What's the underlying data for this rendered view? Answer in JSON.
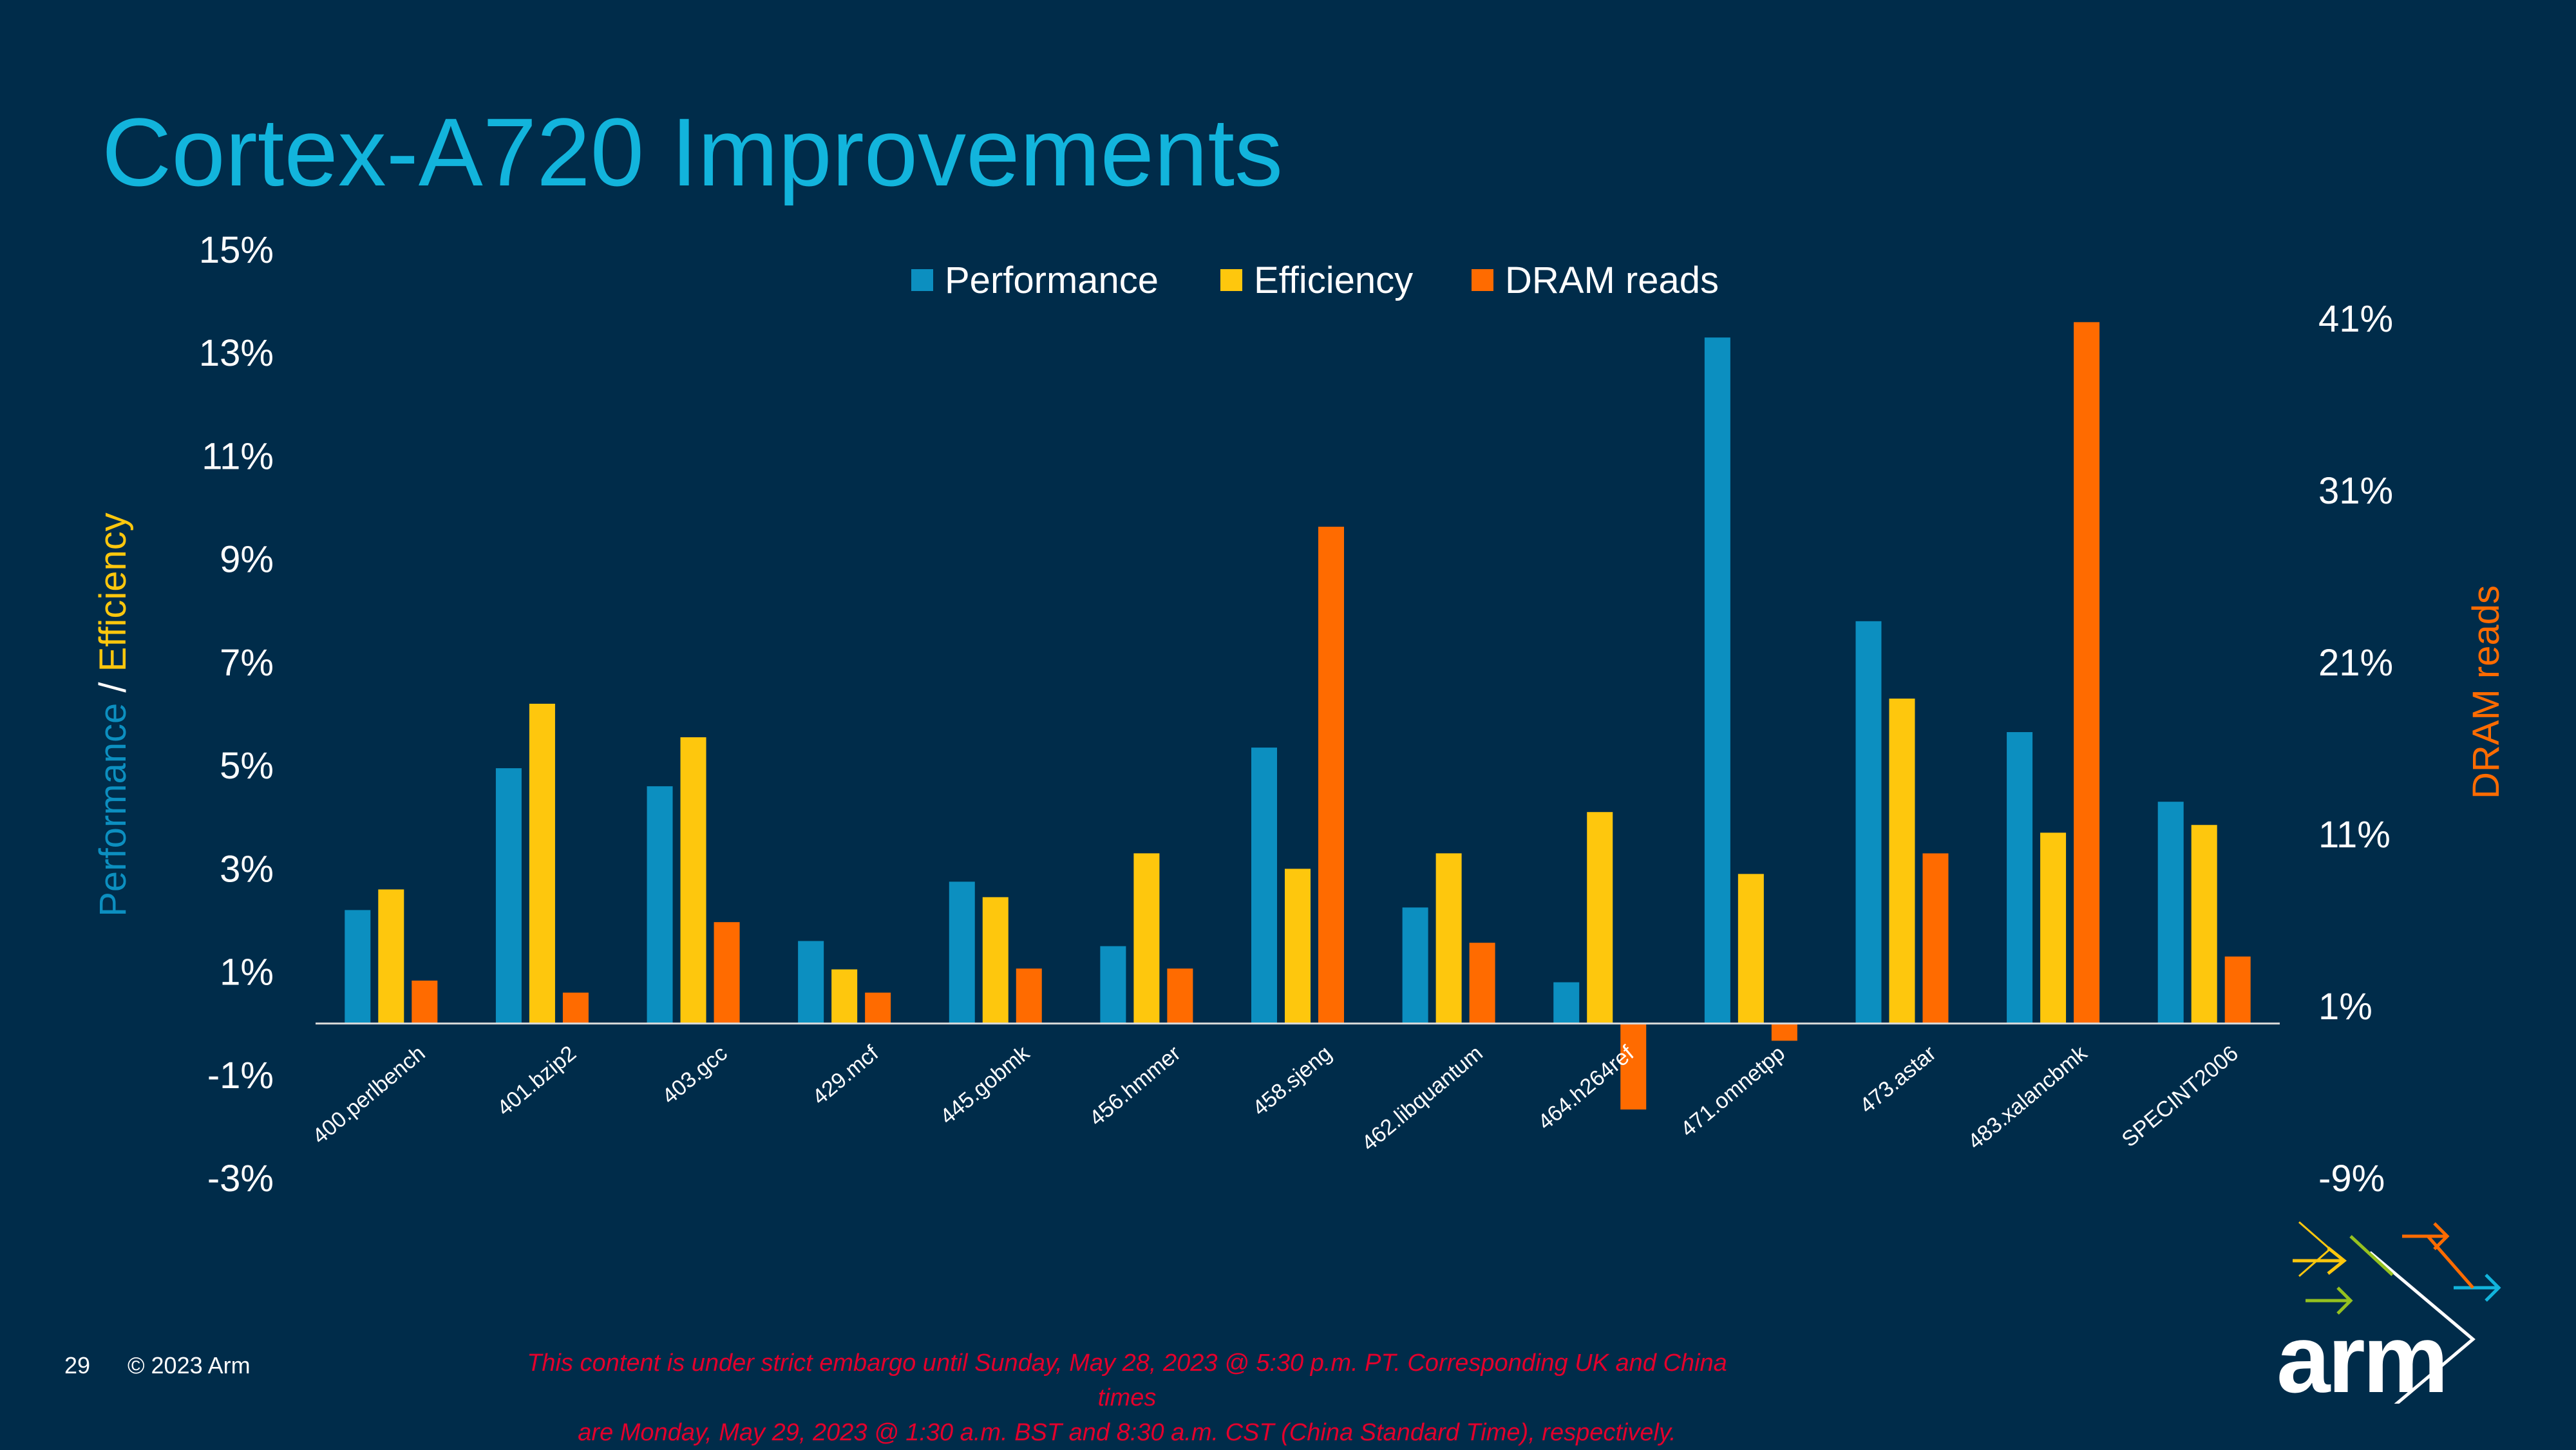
{
  "slide": {
    "title": "Cortex-A720 Improvements",
    "page_number": "29",
    "copyright": "© 2023 Arm",
    "embargo_line1": "This content is under strict embargo until Sunday, May 28, 2023 @ 5:30 p.m. PT. Corresponding UK and China times",
    "embargo_line2": "are Monday, May 29, 2023 @ 1:30 a.m. BST and 8:30 a.m. CST (China Standard Time), respectively.",
    "logo_text": "arm"
  },
  "colors": {
    "background": "#002c4a",
    "title": "#12b4dc",
    "performance": "#0c8fc0",
    "efficiency": "#fec70d",
    "dram": "#ff6b00",
    "text": "#ffffff",
    "embargo": "#e3002c"
  },
  "chart_data": {
    "type": "bar",
    "categories": [
      "400.perlbench",
      "401.bzip2",
      "403.gcc",
      "429.mcf",
      "445.gobmk",
      "456.hmmer",
      "458.sjeng",
      "462.libquantum",
      "464.h264ref",
      "471.omnetpp",
      "473.astar",
      "483.xalancbmk",
      "SPECINT2006"
    ],
    "series": [
      {
        "name": "Performance",
        "axis": "left",
        "color": "#0c8fc0",
        "values": [
          2.2,
          4.95,
          4.6,
          1.6,
          2.75,
          1.5,
          5.35,
          2.25,
          0.8,
          13.3,
          7.8,
          5.65,
          4.3
        ]
      },
      {
        "name": "Efficiency",
        "axis": "left",
        "color": "#fec70d",
        "values": [
          2.6,
          6.2,
          5.55,
          1.05,
          2.45,
          3.3,
          3.0,
          3.3,
          4.1,
          2.9,
          6.3,
          3.7,
          3.85
        ]
      },
      {
        "name": "DRAM reads",
        "axis": "right",
        "color": "#ff6b00",
        "values": [
          2.5,
          1.8,
          5.9,
          1.8,
          3.2,
          3.2,
          28.9,
          4.7,
          -5.0,
          -1.0,
          9.9,
          40.8,
          3.9
        ]
      }
    ],
    "ylabel_left_part1": "Performance",
    "ylabel_left_sep": " / ",
    "ylabel_left_part2": "Efficiency",
    "ylabel_right": "DRAM reads",
    "ylim_left": [
      -3,
      15
    ],
    "ylim_right": [
      -9,
      41
    ],
    "yticks_left": [
      "15%",
      "13%",
      "11%",
      "9%",
      "7%",
      "5%",
      "3%",
      "1%",
      "-1%",
      "-3%"
    ],
    "yticks_left_values": [
      15,
      13,
      11,
      9,
      7,
      5,
      3,
      1,
      -1,
      -3
    ],
    "yticks_right": [
      "41%",
      "31%",
      "21%",
      "11%",
      "1%",
      "-9%"
    ],
    "yticks_right_values": [
      41,
      31,
      21,
      11,
      1,
      -9
    ],
    "legend_position": "top-center",
    "grid": false
  }
}
